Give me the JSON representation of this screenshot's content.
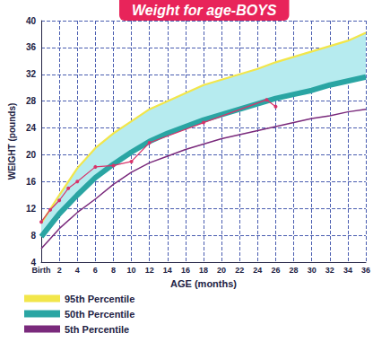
{
  "chart_data": {
    "type": "line",
    "title": "Weight for age-BOYS",
    "x_label": "AGE (months)",
    "y_label": "WEIGHT (pounds)",
    "xlim": [
      0,
      36
    ],
    "xticks": [
      {
        "value": 0,
        "label": "Birth"
      },
      2,
      4,
      6,
      8,
      10,
      12,
      14,
      16,
      18,
      20,
      22,
      24,
      26,
      28,
      30,
      32,
      34,
      36
    ],
    "ylim": [
      4,
      40
    ],
    "yticks": [
      4,
      8,
      12,
      16,
      20,
      24,
      28,
      32,
      36,
      40
    ],
    "grid": true,
    "legend": "bottom left",
    "series": [
      {
        "name": "95th Percentile",
        "color": "#f2e64a",
        "x": [
          0,
          2,
          4,
          6,
          8,
          10,
          12,
          14,
          16,
          18,
          20,
          22,
          24,
          26,
          28,
          30,
          32,
          34,
          36
        ],
        "values": [
          9.8,
          14,
          18,
          21,
          23.2,
          25,
          26.8,
          28,
          29.2,
          30.4,
          31.2,
          32,
          32.8,
          33.8,
          34.6,
          35.4,
          36.2,
          37,
          38.2
        ]
      },
      {
        "name": "50th Percentile",
        "color": "#2aa5a3",
        "x": [
          0,
          2,
          4,
          6,
          8,
          10,
          12,
          14,
          16,
          18,
          20,
          22,
          24,
          26,
          28,
          30,
          32,
          34,
          36
        ],
        "values": [
          7.8,
          11.2,
          14,
          16.6,
          18.6,
          20.4,
          22,
          23.2,
          24.2,
          25.2,
          26,
          26.8,
          27.6,
          28.4,
          29,
          29.6,
          30.4,
          31,
          31.6
        ]
      },
      {
        "name": "5th Percentile",
        "color": "#7a2a7c",
        "x": [
          0,
          2,
          4,
          6,
          8,
          10,
          12,
          14,
          16,
          18,
          20,
          22,
          24,
          26,
          28,
          30,
          32,
          34,
          36
        ],
        "values": [
          6,
          9,
          11.4,
          13.4,
          15.6,
          17.4,
          18.8,
          19.8,
          20.8,
          21.6,
          22.4,
          23,
          23.6,
          24.2,
          24.8,
          25.4,
          25.8,
          26.4,
          26.8
        ]
      },
      {
        "color": "#d8336a",
        "marker": "circle",
        "x": [
          0,
          1,
          2,
          3,
          4,
          6,
          8,
          10,
          12,
          18,
          25,
          26
        ],
        "values": [
          10,
          11.8,
          13.2,
          15,
          16,
          18.2,
          18.4,
          19,
          21.8,
          24.8,
          28.2,
          27.2
        ]
      }
    ]
  }
}
